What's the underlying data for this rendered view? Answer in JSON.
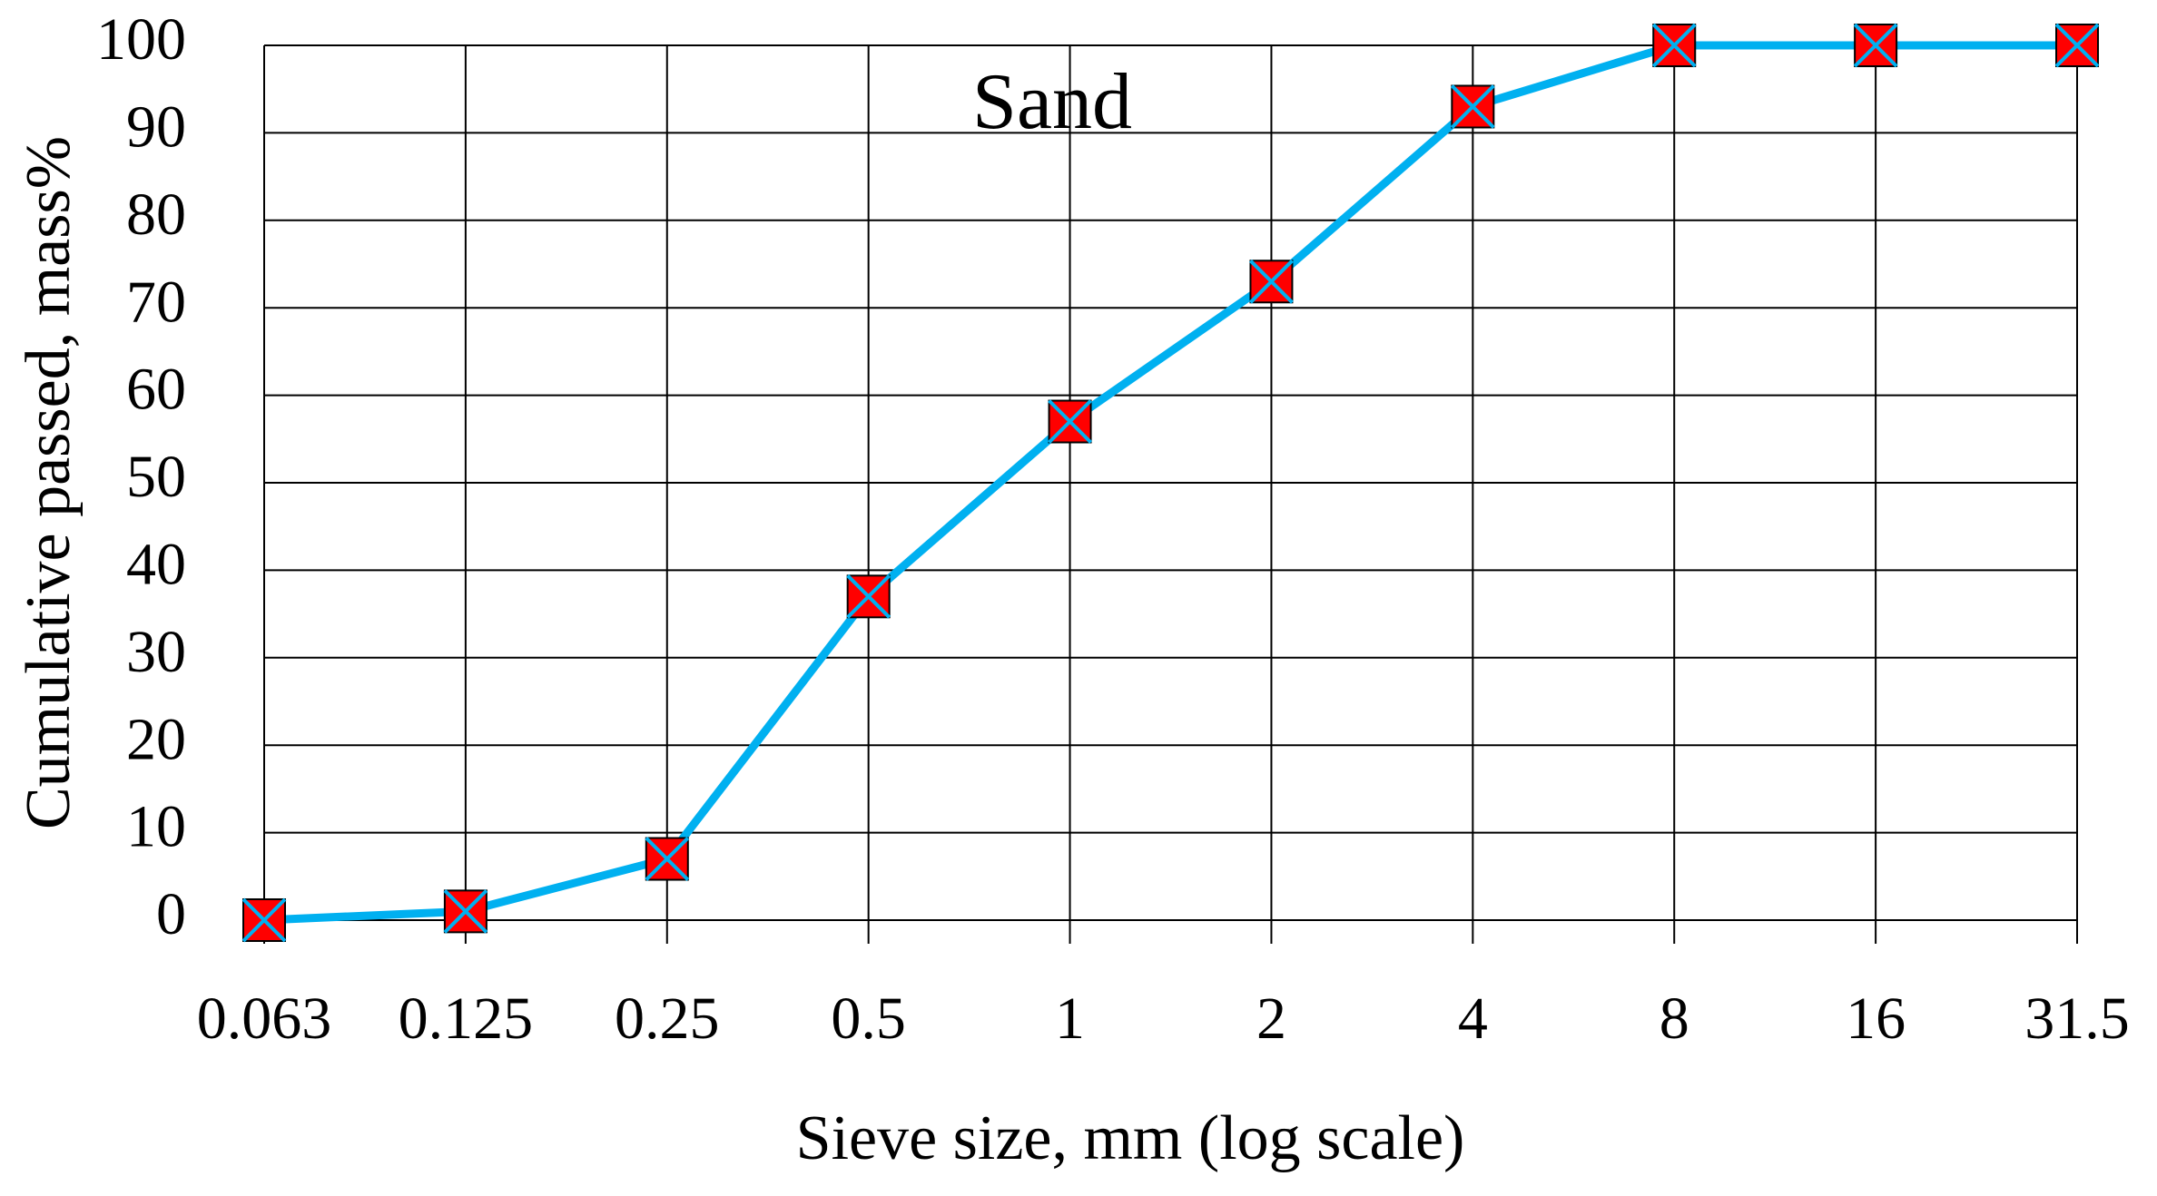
{
  "chart_data": {
    "type": "line",
    "annotation": "Sand",
    "xlabel": "Sieve size, mm (log scale)",
    "ylabel": "Cumulative passed, mass%",
    "categories": [
      "0.063",
      "0.125",
      "0.25",
      "0.5",
      "1",
      "2",
      "4",
      "8",
      "16",
      "31.5"
    ],
    "values": [
      0,
      1,
      7,
      37,
      57,
      73,
      93,
      100,
      100,
      100
    ],
    "color": "#00b0f0",
    "marker_color": "#ff0000",
    "ylim": [
      0,
      100
    ],
    "yticks": [
      0,
      10,
      20,
      30,
      40,
      50,
      60,
      70,
      80,
      90,
      100
    ],
    "grid": true
  }
}
